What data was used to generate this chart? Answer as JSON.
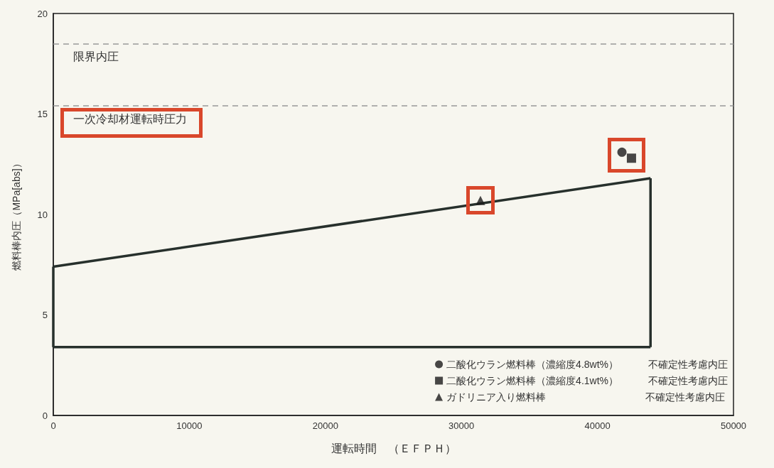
{
  "chart_data": {
    "type": "scatter",
    "xlabel": "運転時間　（ＥＦＰＨ）",
    "ylabel": "燃料棒内圧（MPa[abs]）",
    "xlim": [
      0,
      50000
    ],
    "xticks": [
      0,
      10000,
      20000,
      30000,
      40000,
      50000
    ],
    "ylim": [
      0,
      20
    ],
    "yticks": [
      0,
      5,
      10,
      15,
      20
    ],
    "grid": false,
    "legend": "bottom right",
    "series": [
      {
        "type": "line",
        "color": "#27302c",
        "marker": "none",
        "x": [
          0,
          43900
        ],
        "values": [
          7.4,
          11.8
        ]
      },
      {
        "type": "line",
        "color": "#27302c",
        "marker": "none",
        "x": [
          0,
          43900
        ],
        "values": [
          3.4,
          3.4
        ]
      },
      {
        "type": "line",
        "color": "#27302c",
        "marker": "none",
        "x": [
          0,
          0
        ],
        "values": [
          3.4,
          7.4
        ]
      },
      {
        "type": "line",
        "color": "#27302c",
        "marker": "none",
        "x": [
          43900,
          43900
        ],
        "values": [
          3.4,
          11.8
        ]
      },
      {
        "name": "二酸化ウラン燃料棒（濃縮度4.8wt%）　　　不確定性考慮内圧",
        "color": "#1a1a1a",
        "marker": "circle",
        "x": [
          41800
        ],
        "values": [
          13.1
        ]
      },
      {
        "name": "二酸化ウラン燃料棒（濃縮度4.1wt%）　　　不確定性考慮内圧",
        "color": "#1a1a1a",
        "marker": "square",
        "x": [
          42500
        ],
        "values": [
          12.8
        ]
      },
      {
        "name": "ガドリニア入り燃料棒　　　　　　　　　　不確定性考慮内圧",
        "color": "#1a1a1a",
        "marker": "triangle",
        "x": [
          31400
        ],
        "values": [
          10.7
        ]
      }
    ],
    "ref_lines": [
      {
        "axis": "y",
        "value": 18.5,
        "label": "限界内圧",
        "color": "#999999",
        "line_style": "dashed"
      },
      {
        "axis": "y",
        "value": 15.4,
        "label": "一次冷却材運転時圧力",
        "color": "#999999",
        "line_style": "dashed"
      }
    ]
  }
}
